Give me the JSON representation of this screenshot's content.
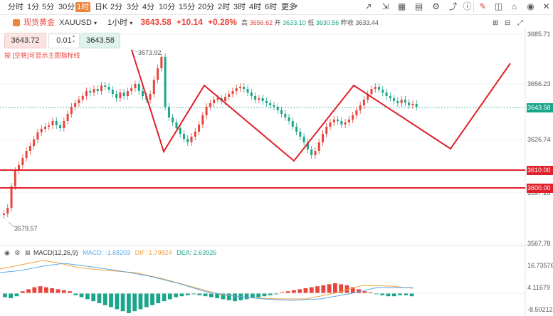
{
  "timeframes": [
    "分时",
    "1分",
    "5分",
    "30分",
    "1时",
    "日K",
    "2分",
    "3分",
    "4分",
    "10分",
    "15分",
    "20分",
    "2时",
    "3时",
    "4时",
    "6时",
    "更多"
  ],
  "active_timeframe": "1时",
  "toolbar_icons": [
    "pencil-icon",
    "fullscreen-icon",
    "grid-icon",
    "layout-icon",
    "settings-icon",
    "share-icon",
    "home-icon",
    "eye-icon"
  ],
  "header": {
    "symbol_name": "现货黄金",
    "symbol_code": "XAUUSD",
    "interval": "1小时",
    "price": "3643.58",
    "change": "+10.14",
    "change_pct": "+0.28%",
    "high_label": "高",
    "high": "3656.62",
    "open_label": "开",
    "open": "3633.10",
    "low_label": "低",
    "low": "3630.56",
    "prev_label": "昨收",
    "prev": "3633.44"
  },
  "order": {
    "sell_price": "3643.72",
    "quantity": "0.01",
    "buy_price": "3643.58"
  },
  "hint": "按 [空格]可显示主图指标线",
  "price_axis": [
    "3685.71",
    "3656.23",
    "3626.74",
    "3597.26",
    "3567.78"
  ],
  "price_tags": {
    "current": "3643.58",
    "line1": "3610.00",
    "line2": "3600.00"
  },
  "annotations": {
    "high": "3673.92",
    "low": "3579.57"
  },
  "macd": {
    "title": "MACD(12,26,9)",
    "macd_label": "MACD: -1.68203",
    "dif_label": "DIF: 1.79824",
    "dea_label": "DEA: 2.63926",
    "axis": [
      "16.73576",
      "4.11679",
      "-8.50212"
    ]
  },
  "colors": {
    "up": "#e8453c",
    "down": "#1aa68a",
    "accent": "#f0833a",
    "line": "#e0202a"
  }
}
